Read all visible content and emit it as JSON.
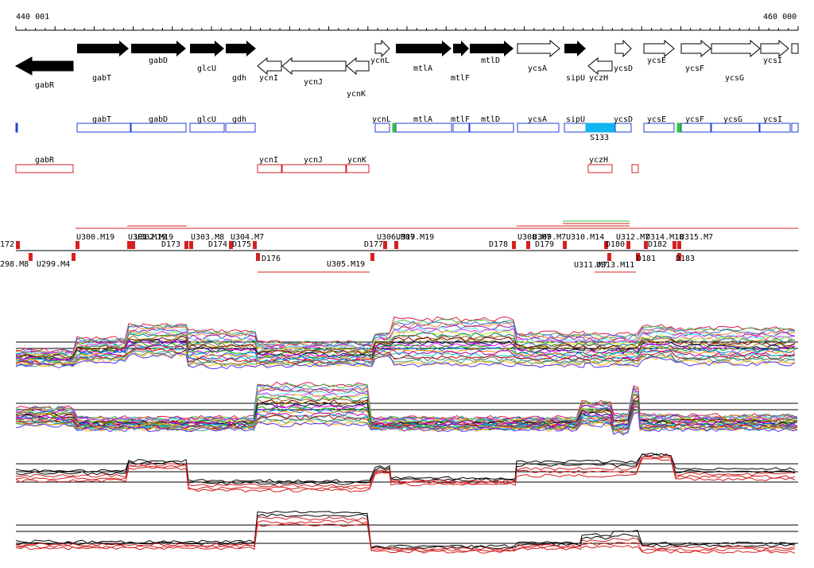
{
  "ruler": {
    "start": "440 001",
    "end": "460 000"
  },
  "genes_forward": [
    {
      "name": "gabT",
      "filled": true
    },
    {
      "name": "gabD",
      "filled": true
    },
    {
      "name": "glcU",
      "filled": true
    },
    {
      "name": "gdh",
      "filled": true
    },
    {
      "name": "ycnL",
      "filled": false
    },
    {
      "name": "mtlA",
      "filled": true
    },
    {
      "name": "mtlF",
      "filled": true
    },
    {
      "name": "mtlD",
      "filled": true
    },
    {
      "name": "ycsA",
      "filled": false
    },
    {
      "name": "sipU",
      "filled": true
    },
    {
      "name": "ycsD",
      "filled": false
    },
    {
      "name": "ycsE",
      "filled": false
    },
    {
      "name": "ycsF",
      "filled": false
    },
    {
      "name": "ycsG",
      "filled": false
    },
    {
      "name": "ycsI",
      "filled": false
    }
  ],
  "genes_reverse": [
    {
      "name": "gabR",
      "filled": true
    },
    {
      "name": "ycnI",
      "filled": false
    },
    {
      "name": "ycnJ",
      "filled": false
    },
    {
      "name": "ycnK",
      "filled": false
    },
    {
      "name": "yczH",
      "filled": false
    }
  ],
  "track_blue": [
    "gabT",
    "gabD",
    "glcU",
    "gdh",
    "ycnL",
    "mtlA",
    "mtlF",
    "mtlD",
    "ycsA",
    "sipU",
    "ycsD",
    "ycsE",
    "ycsF",
    "ycsG",
    "ycsI",
    "S133"
  ],
  "track_red": [
    "gabR",
    "ycnI",
    "ycnJ",
    "ycnK",
    "yczH"
  ],
  "segments_upper": [
    "172",
    "U300.M19",
    "U301.M19",
    "U302.M19",
    "D173",
    "U303.M8",
    "D174",
    "U304.M7",
    "D175",
    "D177",
    "U306.M19",
    "U307.M19",
    "D178",
    "U308.M7",
    "U309.M7",
    "D179",
    "U310.M14",
    "U312.M7",
    "D180",
    "U314.M18",
    "D182",
    "U315.M7"
  ],
  "segments_lower": [
    "298.M8",
    "U299.M4",
    "D176",
    "U305.M19",
    "U311.M7",
    "U313.M11",
    "D181",
    "D183"
  ],
  "colors": {
    "blue": "#1f3fd6",
    "red": "#d42020",
    "cyan": "#12b6f0",
    "green": "#2ec62e",
    "black": "#000000"
  }
}
